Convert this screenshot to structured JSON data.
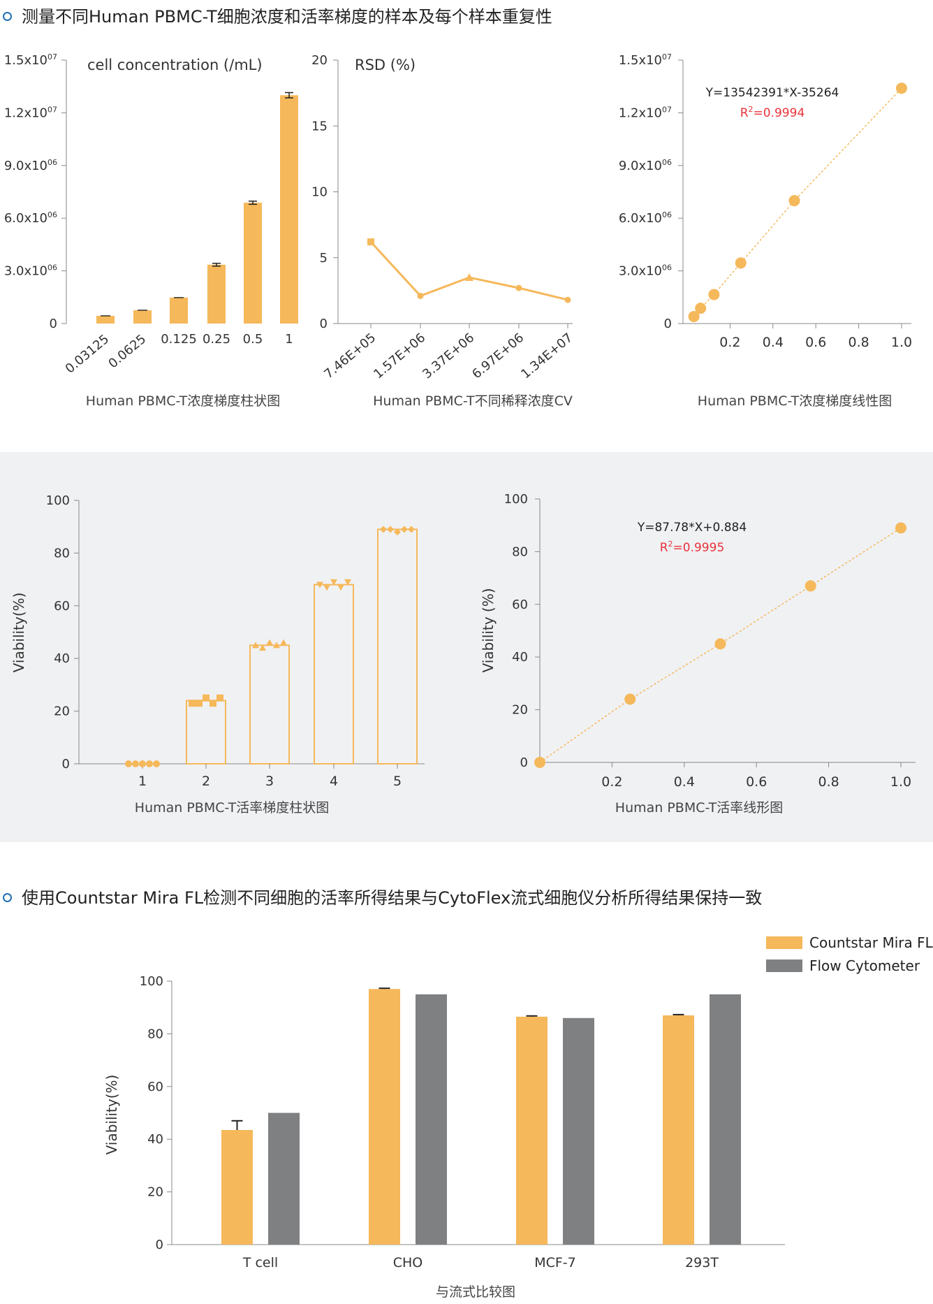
{
  "section1": {
    "title": "测量不同Human PBMC-T细胞浓度和活率梯度的样本及每个样本重复性"
  },
  "section3": {
    "title": "使用Countstar Mira FL检测不同细胞的活率所得结果与CytoFlex流式细胞仪分析所得结果保持一致"
  },
  "colors": {
    "orange": "#f5b85a",
    "gray": "#7f8082",
    "axis": "#888888",
    "red": "#e8323a",
    "band": "#f0f1f3",
    "bullet": "#1f6fb5"
  },
  "chart_data": [
    {
      "id": "c1",
      "type": "bar",
      "title": "cell concentration (/mL)",
      "caption": "Human PBMC-T浓度梯度柱状图",
      "categories": [
        "0.03125",
        "0.0625",
        "0.125",
        "0.25",
        "0.5",
        "1"
      ],
      "values": [
        440000,
        760000,
        1480000,
        3350000,
        6880000,
        13000000
      ],
      "errors": [
        0,
        0,
        0,
        80000,
        90000,
        150000
      ],
      "ylim": [
        0,
        15000000
      ],
      "yticks": [
        {
          "v": 0,
          "b": "0",
          "e": ""
        },
        {
          "v": 3000000,
          "b": "3.0x10",
          "e": "06"
        },
        {
          "v": 6000000,
          "b": "6.0x10",
          "e": "06"
        },
        {
          "v": 9000000,
          "b": "9.0x10",
          "e": "06"
        },
        {
          "v": 12000000,
          "b": "1.2x10",
          "e": "07"
        },
        {
          "v": 15000000,
          "b": "1.5x10",
          "e": "07"
        }
      ]
    },
    {
      "id": "c2",
      "type": "line",
      "title": "RSD (%)",
      "caption": "Human PBMC-T不同稀释浓度CV",
      "categories": [
        "7.46E+05",
        "1.57E+06",
        "3.37E+06",
        "6.97E+06",
        "1.34E+07"
      ],
      "values": [
        6.2,
        2.1,
        3.5,
        2.7,
        1.8
      ],
      "ylim": [
        0,
        20
      ],
      "yticks": [
        0,
        5,
        10,
        15,
        20
      ]
    },
    {
      "id": "c3",
      "type": "scatter",
      "caption": "Human PBMC-T浓度梯度线性图",
      "equation": "Y=13542391*X-35264",
      "r2_base": "R",
      "r2_sup": "2",
      "r2_value": "=0.9994",
      "x": [
        0.03125,
        0.0625,
        0.125,
        0.25,
        0.5,
        1.0
      ],
      "y": [
        400000,
        870000,
        1650000,
        3450000,
        7000000,
        13400000
      ],
      "xlim": [
        0,
        1.05
      ],
      "ylim": [
        0,
        15000000
      ],
      "xticks": [
        "0.2",
        "0.4",
        "0.6",
        "0.8",
        "1.0"
      ],
      "yticks": [
        {
          "v": 0,
          "b": "0",
          "e": ""
        },
        {
          "v": 3000000,
          "b": "3.0x10",
          "e": "06"
        },
        {
          "v": 6000000,
          "b": "6.0x10",
          "e": "06"
        },
        {
          "v": 9000000,
          "b": "9.0x10",
          "e": "06"
        },
        {
          "v": 12000000,
          "b": "1.2x10",
          "e": "07"
        },
        {
          "v": 15000000,
          "b": "1.5x10",
          "e": "07"
        }
      ]
    },
    {
      "id": "c4",
      "type": "bar",
      "caption": "Human PBMC-T活率梯度柱状图",
      "ylabel": "Viability(%)",
      "categories": [
        "1",
        "2",
        "3",
        "4",
        "5"
      ],
      "values": [
        0,
        24,
        45,
        68,
        89
      ],
      "replicates": [
        [
          0,
          0,
          0,
          0,
          0
        ],
        [
          23,
          23,
          25,
          23,
          25
        ],
        [
          45,
          44,
          46,
          45,
          46
        ],
        [
          68,
          67,
          69,
          67,
          69
        ],
        [
          89,
          89,
          88,
          89,
          89
        ]
      ],
      "markers": [
        "circle",
        "square",
        "triangle",
        "triangle-down",
        "diamond"
      ],
      "ylim": [
        0,
        100
      ],
      "yticks": [
        0,
        20,
        40,
        60,
        80,
        100
      ]
    },
    {
      "id": "c5",
      "type": "scatter",
      "caption": "Human PBMC-T活率线形图",
      "ylabel": "Viability (%)",
      "equation": "Y=87.78*X+0.884",
      "r2_base": "R",
      "r2_sup": "2",
      "r2_value": "=0.9995",
      "x": [
        0,
        0.25,
        0.5,
        0.75,
        1.0
      ],
      "y": [
        0,
        24,
        45,
        67,
        89
      ],
      "xlim": [
        0,
        1.05
      ],
      "ylim": [
        0,
        100
      ],
      "xticks": [
        "0.2",
        "0.4",
        "0.6",
        "0.8",
        "1.0"
      ],
      "yticks": [
        0,
        20,
        40,
        60,
        80,
        100
      ]
    },
    {
      "id": "c6",
      "type": "bar",
      "caption": "与流式比较图",
      "ylabel": "Viability(%)",
      "categories": [
        "T cell",
        "CHO",
        "MCF-7",
        "293T"
      ],
      "series": [
        {
          "name": "Countstar Mira FL",
          "values": [
            43.5,
            97,
            86.5,
            87
          ],
          "errors": [
            3.5,
            0.3,
            0.3,
            0.3
          ]
        },
        {
          "name": "Flow Cytometer",
          "values": [
            50,
            95,
            86,
            95
          ]
        }
      ],
      "ylim": [
        0,
        100
      ],
      "yticks": [
        0,
        20,
        40,
        60,
        80,
        100
      ],
      "legend": "top-right"
    }
  ]
}
